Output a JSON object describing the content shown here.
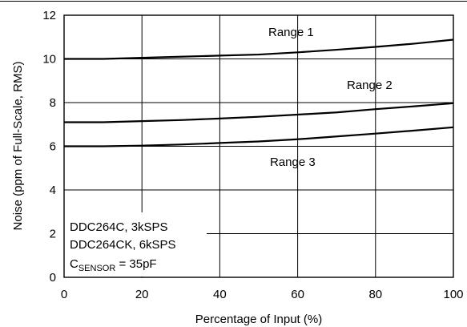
{
  "chart_data": {
    "type": "line",
    "title": "",
    "xlabel": "Percentage of Input (%)",
    "ylabel": "Noise (ppm of Full-Scale, RMS)",
    "xlim": [
      0,
      100
    ],
    "ylim": [
      0,
      12
    ],
    "x_ticks": [
      0,
      20,
      40,
      60,
      80,
      100
    ],
    "y_ticks": [
      0,
      2,
      4,
      6,
      8,
      10,
      12
    ],
    "grid": true,
    "x": [
      0,
      10,
      20,
      30,
      40,
      50,
      60,
      70,
      80,
      90,
      100
    ],
    "series": [
      {
        "name": "Range 1",
        "values": [
          10.0,
          10.0,
          10.05,
          10.1,
          10.15,
          10.2,
          10.3,
          10.42,
          10.55,
          10.7,
          10.88
        ]
      },
      {
        "name": "Range 2",
        "values": [
          7.1,
          7.1,
          7.15,
          7.2,
          7.27,
          7.35,
          7.45,
          7.55,
          7.7,
          7.83,
          7.97
        ]
      },
      {
        "name": "Range 3",
        "values": [
          6.0,
          6.0,
          6.03,
          6.08,
          6.15,
          6.22,
          6.32,
          6.45,
          6.58,
          6.72,
          6.87
        ]
      }
    ],
    "annotation": {
      "lines": [
        "DDC264C, 3kSPS",
        "DDC264CK, 6kSPS"
      ],
      "csensor": {
        "prefix": "C",
        "subscript": "SENSOR",
        "suffix": " = 35pF"
      }
    },
    "line_color": "#000000",
    "grid_color": "#000000"
  }
}
